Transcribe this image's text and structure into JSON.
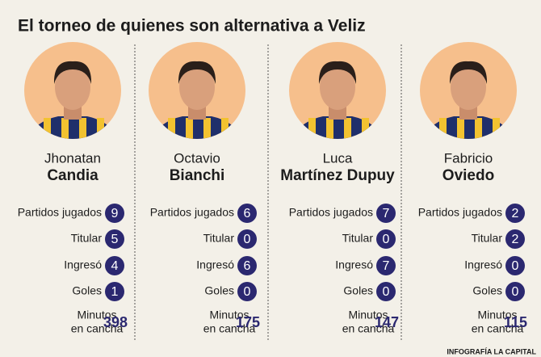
{
  "title": "El torneo de quienes son alternativa a Veliz",
  "stat_labels": [
    "Partidos jugados",
    "Titular",
    "Ingresó",
    "Goles"
  ],
  "minutes_label": [
    "Minutos",
    "en cancha"
  ],
  "players": [
    {
      "first_name": "Jhonatan",
      "last_name": "Candia",
      "stats": [
        9,
        5,
        4,
        1
      ],
      "minutes": 398
    },
    {
      "first_name": "Octavio",
      "last_name": "Bianchi",
      "stats": [
        6,
        0,
        6,
        0
      ],
      "minutes": 175
    },
    {
      "first_name": "Luca",
      "last_name": "Martínez Dupuy",
      "stats": [
        7,
        0,
        7,
        0
      ],
      "minutes": 147
    },
    {
      "first_name": "Fabricio",
      "last_name": "Oviedo",
      "stats": [
        2,
        2,
        0,
        0
      ],
      "minutes": 115
    }
  ],
  "credit": "INFOGRAFÍA LA CAPITAL"
}
